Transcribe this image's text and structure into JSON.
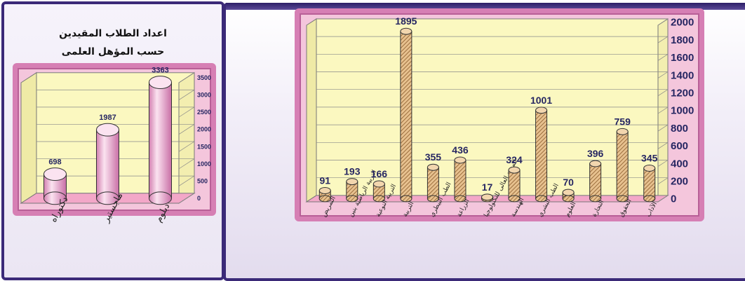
{
  "left_title_line1": "اعداد الطلاب المقيدين",
  "left_title_line2": "حسب المؤهل العلمى",
  "colors": {
    "frame": "#d67fb4",
    "plot_bg": "#fbf8c0",
    "bar": "#f0a6cf",
    "navy": "#3b2a78"
  },
  "chart_data": [
    {
      "type": "bar",
      "categories": [
        "دكتوراه",
        "ماجستير",
        "دبلوم"
      ],
      "values": [
        698,
        1987,
        3363
      ],
      "ylim": [
        0,
        3500
      ],
      "yticks": [
        "0",
        "500",
        "1000",
        "1500",
        "2000",
        "2500",
        "3000",
        "3500"
      ],
      "grid": true,
      "bar_style": "pink cylinders"
    },
    {
      "type": "bar",
      "categories": [
        "التمريض",
        "التربية الرياضية بنين",
        "التربية النوعية",
        "التربية",
        "الطب البيطري",
        "الزراعة",
        "المعهد العالى للتكنولوجيا",
        "الهندسة",
        "الطب البشري",
        "العلوم",
        "التجارة",
        "الحقوق",
        "الآداب"
      ],
      "values": [
        91,
        193,
        166,
        1895,
        355,
        436,
        17,
        324,
        1001,
        70,
        396,
        759,
        345
      ],
      "ylim": [
        0,
        2000
      ],
      "yticks": [
        "0",
        "200",
        "400",
        "600",
        "800",
        "1000",
        "1200",
        "1400",
        "1600",
        "1800",
        "2000"
      ],
      "grid": true,
      "bar_style": "hatched cylinders"
    }
  ]
}
